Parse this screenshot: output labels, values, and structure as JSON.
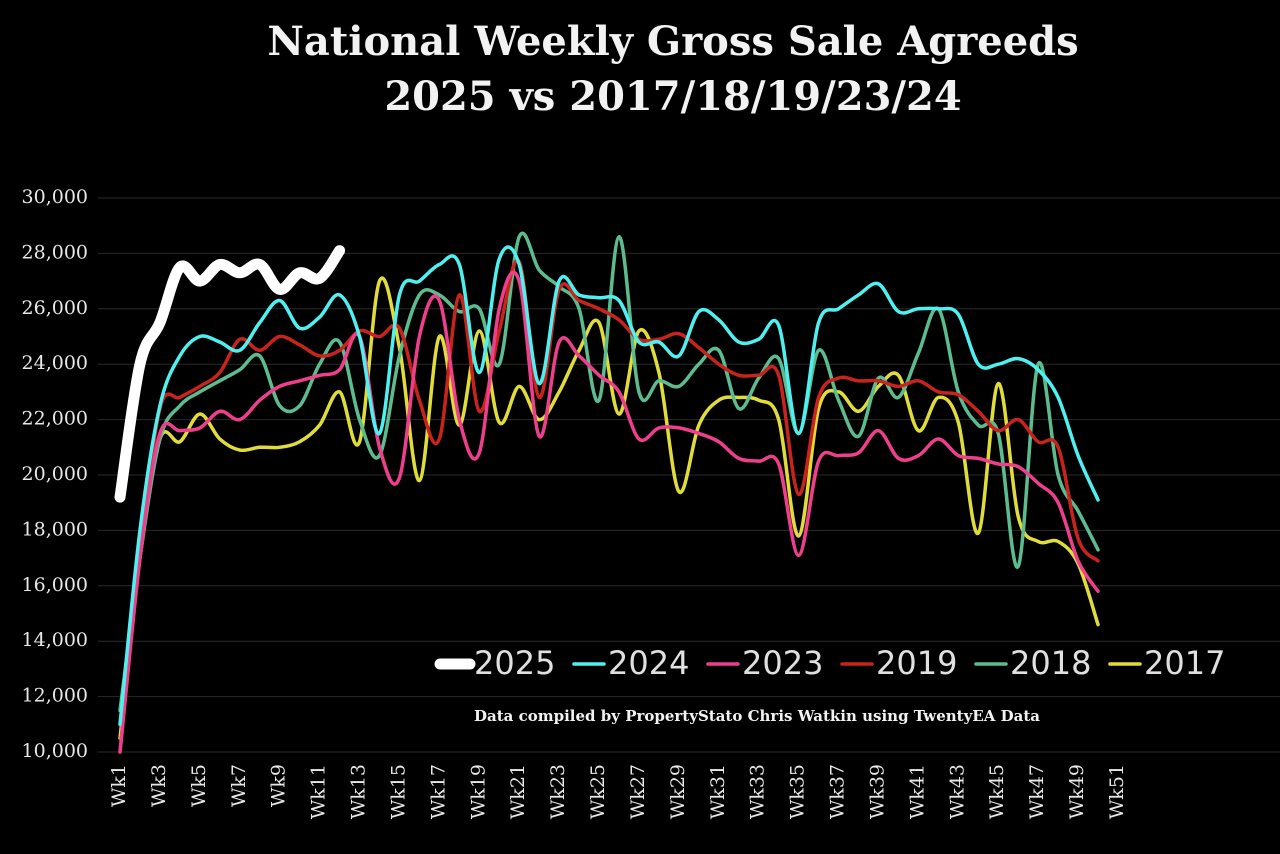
{
  "chart_data": {
    "type": "line",
    "title": "National Weekly Gross Sale Agreeds",
    "subtitle": "2025 vs 2017/18/19/23/24",
    "annotation": "Data compiled by PropertyStato Chris Watkin using TwentyEA Data",
    "categories": [
      "Wk1",
      null,
      "Wk3",
      null,
      "Wk5",
      null,
      "Wk7",
      null,
      "Wk9",
      null,
      "Wk11",
      null,
      "Wk13",
      null,
      "Wk15",
      null,
      "Wk17",
      null,
      "Wk19",
      null,
      "Wk21",
      null,
      "Wk23",
      null,
      "Wk25",
      null,
      "Wk27",
      null,
      "Wk29",
      null,
      "Wk31",
      null,
      "Wk33",
      null,
      "Wk35",
      null,
      "Wk37",
      null,
      "Wk39",
      null,
      "Wk41",
      null,
      "Wk43",
      null,
      "Wk45",
      null,
      "Wk47",
      null,
      "Wk49",
      null,
      "Wk51"
    ],
    "ylim": [
      10000,
      30000
    ],
    "yticks": [
      {
        "value": 10000,
        "label": "10,000"
      },
      {
        "value": 12000,
        "label": "12,000"
      },
      {
        "value": 14000,
        "label": "14,000"
      },
      {
        "value": 16000,
        "label": "16,000"
      },
      {
        "value": 18000,
        "label": "18,000"
      },
      {
        "value": 20000,
        "label": "20,000"
      },
      {
        "value": 22000,
        "label": "22,000"
      },
      {
        "value": 24000,
        "label": "24,000"
      },
      {
        "value": 26000,
        "label": "26,000"
      },
      {
        "value": 28000,
        "label": "28,000"
      },
      {
        "value": 30000,
        "label": "30,000"
      }
    ],
    "grid": true,
    "legend": "bottom-right",
    "series": [
      {
        "name": "2025",
        "color": "#ffffff",
        "values": [
          19200,
          24000,
          25500,
          27500,
          27000,
          27600,
          27300,
          27600,
          26700,
          27300,
          27100,
          28100,
          null,
          null,
          null,
          null,
          null,
          null,
          null,
          null,
          null,
          null,
          null,
          null,
          null,
          null,
          null,
          null,
          null,
          null,
          null,
          null,
          null,
          null,
          null,
          null,
          null,
          null,
          null,
          null,
          null,
          null,
          null,
          null,
          null,
          null,
          null,
          null,
          null,
          null,
          null
        ]
      },
      {
        "name": "2024",
        "color": "#4ff0f0",
        "values": [
          11000,
          18000,
          22500,
          24300,
          25000,
          24800,
          24500,
          25500,
          26300,
          25300,
          25700,
          26500,
          25000,
          21500,
          26500,
          27000,
          27600,
          27600,
          23700,
          27800,
          27600,
          23300,
          27000,
          26500,
          26400,
          26300,
          24800,
          24800,
          24300,
          25900,
          25600,
          24800,
          24900,
          25400,
          21500,
          25500,
          26000,
          26500,
          26900,
          25900,
          26000,
          26000,
          25800,
          24000,
          24000,
          24200,
          23800,
          22800,
          20700,
          19100,
          null
        ]
      },
      {
        "name": "2023",
        "color": "#ee3f8c",
        "values": [
          10000,
          17000,
          21500,
          21600,
          21700,
          22300,
          22000,
          22700,
          23200,
          23400,
          23600,
          23800,
          25000,
          21000,
          19900,
          25000,
          26300,
          22000,
          20800,
          26000,
          27000,
          21400,
          24800,
          24300,
          23600,
          23000,
          21300,
          21700,
          21700,
          21500,
          21200,
          20600,
          20500,
          20400,
          17100,
          20500,
          20700,
          20800,
          21600,
          20600,
          20700,
          21300,
          20700,
          20600,
          20400,
          20300,
          19700,
          19000,
          16900,
          15800,
          null
        ]
      },
      {
        "name": "2019",
        "color": "#c8231c",
        "values": [
          10000,
          17000,
          22400,
          22800,
          23200,
          23700,
          24900,
          24500,
          25000,
          24700,
          24300,
          24500,
          25200,
          25000,
          25300,
          22700,
          21300,
          26500,
          22300,
          25200,
          27700,
          22800,
          26700,
          26300,
          26000,
          25600,
          24900,
          24900,
          25100,
          24600,
          24000,
          23600,
          23600,
          23600,
          19300,
          22800,
          23500,
          23400,
          23400,
          23200,
          23400,
          23000,
          22900,
          22300,
          21600,
          22000,
          21200,
          21000,
          17700,
          16900,
          null
        ]
      },
      {
        "name": "2018",
        "color": "#5cbc90",
        "values": [
          11500,
          17000,
          21300,
          22500,
          23000,
          23400,
          23800,
          24300,
          22500,
          22500,
          24000,
          24800,
          22000,
          20700,
          24300,
          26500,
          26500,
          25900,
          26000,
          24000,
          28600,
          27400,
          26800,
          26000,
          22700,
          28600,
          23000,
          23400,
          23200,
          24000,
          24500,
          22400,
          23500,
          24200,
          21500,
          24500,
          22700,
          21400,
          23500,
          22800,
          24400,
          26000,
          23000,
          21800,
          21500,
          16700,
          24000,
          20000,
          18700,
          17300,
          null
        ]
      },
      {
        "name": "2017",
        "color": "#e0dc3a",
        "values": [
          10500,
          17000,
          21300,
          21200,
          22200,
          21300,
          20900,
          21000,
          21000,
          21200,
          21800,
          23000,
          21200,
          27000,
          24600,
          19800,
          25000,
          21800,
          25200,
          21900,
          23200,
          22000,
          23000,
          24500,
          25500,
          22200,
          25200,
          23700,
          19400,
          21800,
          22700,
          22800,
          22700,
          22000,
          17800,
          22400,
          23000,
          22300,
          23200,
          23600,
          21600,
          22800,
          21900,
          17900,
          23300,
          18500,
          17600,
          17600,
          16800,
          14600,
          null
        ]
      }
    ]
  }
}
